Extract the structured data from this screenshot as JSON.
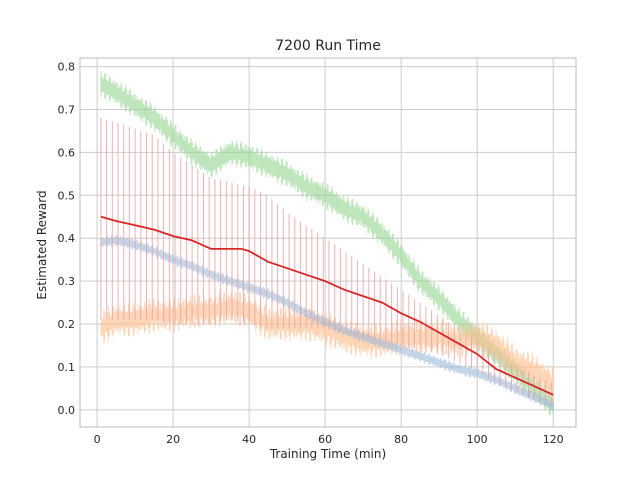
{
  "chart_data": {
    "type": "line",
    "title": "7200 Run Time",
    "xlabel": "Training Time (min)",
    "ylabel": "Estimated Reward",
    "xlim": [
      -4.5,
      126
    ],
    "ylim": [
      -0.04,
      0.82
    ],
    "xticks": [
      0,
      20,
      40,
      60,
      80,
      100,
      120
    ],
    "yticks": [
      0.0,
      0.1,
      0.2,
      0.3,
      0.4,
      0.5,
      0.6,
      0.7,
      0.8
    ],
    "grid": true,
    "legend": "none",
    "colors": {
      "mean": "#d62728",
      "errorbar": "#e8a3a4",
      "green_band": "#98d594",
      "blue_band": "#9ebcdb",
      "orange_band": "#ffbb88",
      "grid": "#cccccc",
      "spine": "#bdbdbd"
    },
    "series": [
      {
        "style": "mean-line",
        "x": [
          1,
          5,
          10,
          15,
          20,
          25,
          30,
          35,
          38,
          40,
          45,
          50,
          55,
          60,
          65,
          70,
          75,
          80,
          85,
          90,
          95,
          100,
          105,
          110,
          115,
          120
        ],
        "y": [
          0.45,
          0.44,
          0.43,
          0.42,
          0.405,
          0.395,
          0.375,
          0.375,
          0.375,
          0.37,
          0.345,
          0.33,
          0.315,
          0.3,
          0.28,
          0.265,
          0.25,
          0.225,
          0.205,
          0.18,
          0.155,
          0.13,
          0.095,
          0.075,
          0.055,
          0.035
        ]
      },
      {
        "style": "errorbar-upper",
        "x": [
          1,
          5,
          10,
          15,
          20,
          25,
          30,
          35,
          40,
          45,
          50,
          55,
          60,
          65,
          70,
          75,
          80,
          85,
          90,
          95,
          100,
          105,
          110,
          115,
          120
        ],
        "y": [
          0.68,
          0.67,
          0.655,
          0.64,
          0.6,
          0.57,
          0.54,
          0.53,
          0.52,
          0.5,
          0.46,
          0.43,
          0.4,
          0.37,
          0.34,
          0.31,
          0.28,
          0.25,
          0.22,
          0.19,
          0.16,
          0.13,
          0.1,
          0.08,
          0.06
        ]
      },
      {
        "style": "errorbar-lower",
        "x": [
          1,
          5,
          10,
          15,
          20,
          25,
          30,
          35,
          40,
          45,
          50,
          55,
          60,
          65,
          70,
          75,
          80,
          85,
          90,
          95,
          100,
          105,
          110,
          115,
          120
        ],
        "y": [
          0.21,
          0.21,
          0.21,
          0.21,
          0.2,
          0.2,
          0.2,
          0.21,
          0.2,
          0.19,
          0.19,
          0.19,
          0.19,
          0.18,
          0.17,
          0.16,
          0.15,
          0.14,
          0.13,
          0.11,
          0.09,
          0.06,
          0.04,
          0.02,
          0.01
        ]
      },
      {
        "style": "green-band",
        "x": [
          1,
          5,
          10,
          15,
          20,
          25,
          30,
          35,
          40,
          45,
          50,
          55,
          60,
          65,
          70,
          75,
          80,
          85,
          90,
          95,
          100,
          105,
          110,
          115,
          120
        ],
        "y": [
          0.76,
          0.74,
          0.71,
          0.68,
          0.64,
          0.6,
          0.57,
          0.6,
          0.59,
          0.57,
          0.55,
          0.52,
          0.5,
          0.47,
          0.45,
          0.41,
          0.36,
          0.3,
          0.26,
          0.21,
          0.17,
          0.13,
          0.09,
          0.05,
          0.01
        ]
      },
      {
        "style": "blue-band",
        "x": [
          1,
          5,
          10,
          15,
          20,
          25,
          30,
          35,
          40,
          45,
          50,
          55,
          60,
          65,
          70,
          75,
          80,
          85,
          90,
          95,
          100,
          105,
          110,
          115,
          120
        ],
        "y": [
          0.39,
          0.395,
          0.385,
          0.37,
          0.35,
          0.335,
          0.315,
          0.3,
          0.285,
          0.27,
          0.25,
          0.225,
          0.205,
          0.185,
          0.17,
          0.155,
          0.14,
          0.125,
          0.11,
          0.095,
          0.085,
          0.07,
          0.05,
          0.03,
          0.01
        ]
      },
      {
        "style": "orange-band",
        "x": [
          1,
          5,
          10,
          15,
          20,
          25,
          30,
          35,
          40,
          45,
          50,
          55,
          60,
          65,
          70,
          75,
          80,
          85,
          90,
          95,
          100,
          105,
          110,
          115,
          120
        ],
        "y": [
          0.19,
          0.21,
          0.21,
          0.22,
          0.22,
          0.23,
          0.23,
          0.24,
          0.23,
          0.2,
          0.2,
          0.2,
          0.19,
          0.17,
          0.16,
          0.16,
          0.17,
          0.17,
          0.17,
          0.16,
          0.17,
          0.15,
          0.11,
          0.09,
          0.06
        ]
      }
    ]
  }
}
